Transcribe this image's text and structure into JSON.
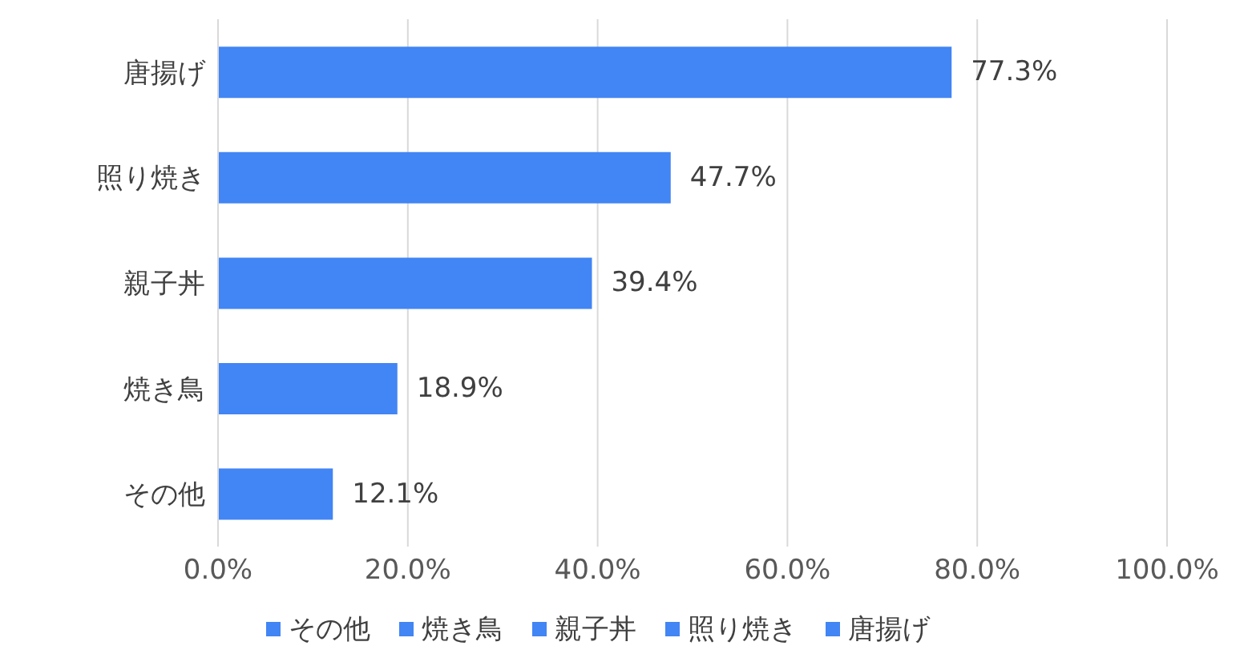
{
  "chart_data": {
    "type": "bar",
    "orientation": "horizontal",
    "stacked": true,
    "categories": [
      "唐揚げ",
      "照り焼き",
      "親子丼",
      "焼き鳥",
      "その他"
    ],
    "series": [
      {
        "name": "その他",
        "color": "#4285f4",
        "values": [
          null,
          null,
          null,
          null,
          12.1
        ],
        "value_labels": [
          null,
          null,
          null,
          null,
          "12.1%"
        ]
      },
      {
        "name": "焼き鳥",
        "color": "#4285f4",
        "values": [
          null,
          null,
          null,
          18.9,
          null
        ],
        "value_labels": [
          null,
          null,
          null,
          "18.9%",
          null
        ]
      },
      {
        "name": "親子丼",
        "color": "#4285f4",
        "values": [
          null,
          null,
          39.4,
          null,
          null
        ],
        "value_labels": [
          null,
          null,
          "39.4%",
          null,
          null
        ]
      },
      {
        "name": "照り焼き",
        "color": "#4285f4",
        "values": [
          null,
          47.7,
          null,
          null,
          null
        ],
        "value_labels": [
          null,
          "47.7%",
          null,
          null,
          null
        ]
      },
      {
        "name": "唐揚げ",
        "color": "#4285f4",
        "values": [
          77.3,
          null,
          null,
          null,
          null
        ],
        "value_labels": [
          "77.3%",
          null,
          null,
          null,
          null
        ]
      }
    ],
    "xlim": [
      0,
      100
    ],
    "xticks": [
      {
        "value": 0,
        "label": "0.0%"
      },
      {
        "value": 20,
        "label": "20.0%"
      },
      {
        "value": 40,
        "label": "40.0%"
      },
      {
        "value": 60,
        "label": "60.0%"
      },
      {
        "value": 80,
        "label": "80.0%"
      },
      {
        "value": 100,
        "label": "100.0%"
      }
    ],
    "grid": "x",
    "legend": "bottom"
  }
}
